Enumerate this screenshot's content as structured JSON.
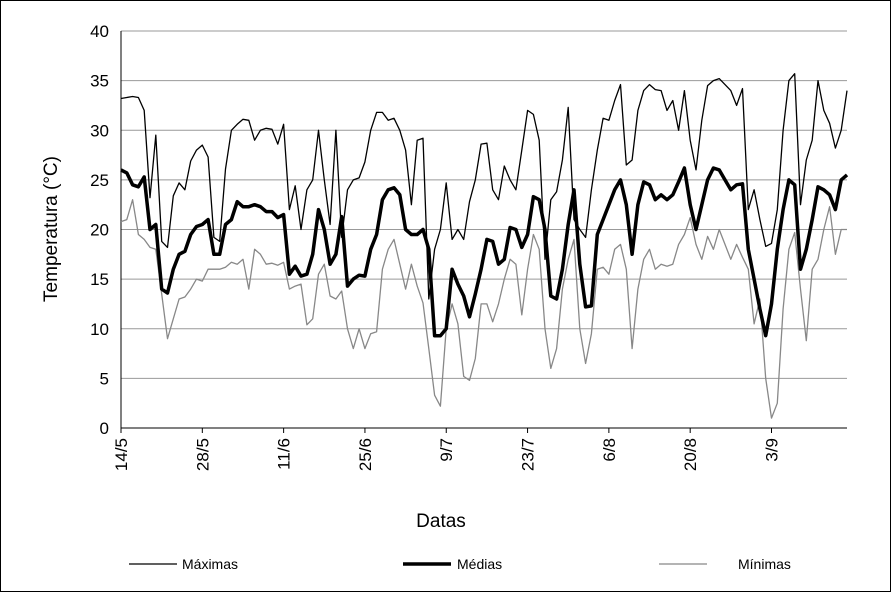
{
  "chart_data": {
    "type": "line",
    "xlabel": "Datas",
    "ylabel": "Temperatura (°C)",
    "ylim": [
      0,
      40
    ],
    "yticks": [
      "0",
      "5",
      "10",
      "15",
      "20",
      "25",
      "30",
      "35",
      "40"
    ],
    "xticks": [
      "14/5",
      "28/5",
      "11/6",
      "25/6",
      "9/7",
      "23/7",
      "6/8",
      "20/8",
      "3/9"
    ],
    "x_start": "14/5",
    "n_days": 126,
    "grid": "horizontal",
    "legend": "bottom",
    "series": [
      {
        "name": "Máximas",
        "style": "thin-black",
        "color": "#000000",
        "values": [
          33.2,
          33.3,
          33.4,
          33.3,
          32.0,
          23.2,
          29.5,
          18.8,
          18.2,
          23.4,
          24.7,
          24.0,
          26.9,
          28.0,
          28.5,
          27.3,
          19.2,
          18.8,
          26.1,
          30.0,
          30.6,
          31.1,
          31.0,
          29.0,
          30.0,
          30.2,
          30.1,
          28.6,
          30.6,
          22.0,
          24.4,
          20.0,
          24.0,
          25.0,
          30.0,
          25.0,
          20.5,
          30.0,
          19.2,
          24.0,
          25.0,
          25.2,
          26.8,
          30.0,
          31.8,
          31.8,
          31.0,
          31.2,
          30.0,
          28.0,
          22.5,
          29.0,
          29.2,
          13.0,
          18.0,
          20.0,
          24.7,
          19.0,
          20.0,
          19.0,
          22.8,
          25.0,
          28.6,
          28.7,
          24.0,
          23.0,
          26.4,
          25.0,
          24.0,
          28.0,
          32.0,
          31.6,
          29.0,
          17.0,
          23.0,
          23.8,
          27.0,
          32.3,
          21.0,
          20.0,
          19.2,
          24.0,
          28.0,
          31.2,
          31.0,
          33.0,
          34.6,
          26.5,
          27.0,
          32.0,
          34.0,
          34.6,
          34.1,
          34.0,
          32.0,
          33.0,
          30.0,
          34.0,
          29.0,
          26.0,
          31.0,
          34.5,
          35.0,
          35.2,
          34.6,
          34.0,
          32.5,
          34.2,
          22.0,
          24.0,
          21.0,
          18.3,
          18.6,
          22.0,
          30.0,
          35.0,
          35.7,
          22.5,
          27.0,
          29.0,
          35.0,
          32.0,
          30.7,
          28.2,
          30.0,
          34.0
        ]
      },
      {
        "name": "Médias",
        "style": "thick-black",
        "color": "#000000",
        "values": [
          26.0,
          25.7,
          24.5,
          24.3,
          25.3,
          20.0,
          20.5,
          14.0,
          13.6,
          16.0,
          17.5,
          17.8,
          19.5,
          20.3,
          20.5,
          21.0,
          17.5,
          17.5,
          20.5,
          21.0,
          22.8,
          22.3,
          22.3,
          22.5,
          22.3,
          21.8,
          21.8,
          21.2,
          21.5,
          15.5,
          16.3,
          15.3,
          15.5,
          17.5,
          22.0,
          20.0,
          16.5,
          17.5,
          21.3,
          14.3,
          15.0,
          15.4,
          15.3,
          18.0,
          19.5,
          23.0,
          24.0,
          24.2,
          23.5,
          20.0,
          19.5,
          19.5,
          20.0,
          18.0,
          9.3,
          9.3,
          10.0,
          16.0,
          14.5,
          13.3,
          11.2,
          13.5,
          16.0,
          19.0,
          18.8,
          16.5,
          17.0,
          20.2,
          20.0,
          18.2,
          19.5,
          23.3,
          23.0,
          20.0,
          13.3,
          13.0,
          16.0,
          20.5,
          24.0,
          16.5,
          12.2,
          12.3,
          19.5,
          21.0,
          22.5,
          24.0,
          25.0,
          22.5,
          17.5,
          22.5,
          24.8,
          24.5,
          23.0,
          23.5,
          23.0,
          23.5,
          24.8,
          26.2,
          22.5,
          20.0,
          22.5,
          25.0,
          26.2,
          26.0,
          25.0,
          24.0,
          24.5,
          24.6,
          18.0,
          15.0,
          12.0,
          9.3,
          12.5,
          18.0,
          22.0,
          25.0,
          24.5,
          16.0,
          18.0,
          21.0,
          24.3,
          24.0,
          23.5,
          22.0,
          25.0,
          25.5
        ]
      },
      {
        "name": "Mínimas",
        "style": "thin-gray",
        "color": "#888888",
        "values": [
          20.8,
          21.0,
          23.0,
          19.5,
          19.0,
          18.2,
          18.0,
          13.5,
          9.0,
          11.0,
          13.0,
          13.2,
          14.0,
          15.0,
          14.8,
          16.0,
          16.0,
          16.0,
          16.2,
          16.7,
          16.5,
          17.0,
          14.0,
          18.0,
          17.5,
          16.5,
          16.6,
          16.4,
          16.7,
          14.0,
          14.3,
          14.5,
          10.4,
          11.0,
          15.5,
          16.5,
          13.3,
          13.0,
          13.8,
          10.0,
          8.0,
          10.0,
          8.0,
          9.5,
          9.7,
          16.0,
          18.0,
          19.0,
          16.5,
          14.0,
          16.5,
          14.3,
          12.6,
          8.0,
          3.3,
          2.2,
          10.0,
          12.5,
          10.5,
          5.2,
          4.8,
          7.0,
          12.5,
          12.5,
          10.7,
          12.5,
          15.0,
          17.0,
          16.5,
          11.4,
          16.0,
          19.5,
          18.0,
          10.0,
          6.0,
          8.0,
          14.0,
          17.0,
          19.0,
          10.0,
          6.5,
          9.5,
          16.0,
          16.2,
          15.5,
          18.0,
          18.5,
          16.0,
          8.0,
          14.0,
          17.0,
          18.0,
          16.0,
          16.5,
          16.3,
          16.5,
          18.5,
          19.5,
          21.2,
          18.5,
          17.0,
          19.3,
          18.0,
          20.0,
          18.5,
          17.0,
          18.5,
          17.2,
          16.0,
          10.5,
          13.0,
          5.0,
          1.0,
          2.5,
          12.0,
          18.0,
          19.7,
          14.0,
          8.8,
          16.0,
          17.0,
          20.0,
          22.3,
          17.5,
          20.0,
          20.0
        ]
      }
    ]
  }
}
